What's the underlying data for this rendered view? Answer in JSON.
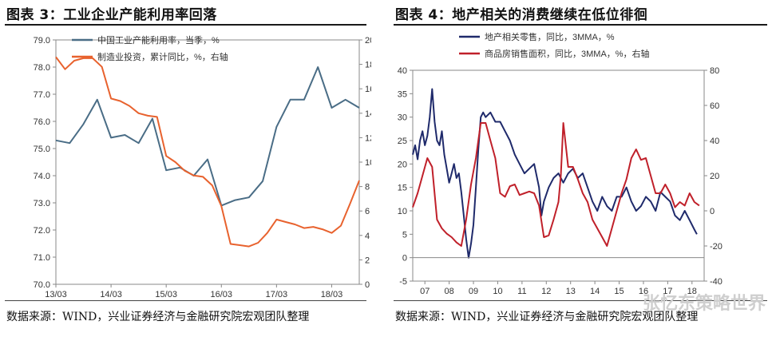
{
  "left": {
    "title": "图表 3：工业企业产能利用率回落",
    "source": "数据来源：WIND，兴业证券经济与金融研究院宏观团队整理",
    "chart_data": {
      "type": "line",
      "title": "工业企业产能利用率回落",
      "x_labels": [
        "13/03",
        "14/03",
        "15/03",
        "16/03",
        "17/03",
        "18/03"
      ],
      "ylim_left": [
        70.0,
        79.0
      ],
      "yticks_left": [
        "79.0",
        "78.0",
        "77.0",
        "76.0",
        "75.0",
        "74.0",
        "73.0",
        "72.0",
        "71.0",
        "70.0"
      ],
      "ylim_right": [
        0,
        20
      ],
      "yticks_right": [
        "20",
        "18",
        "16",
        "14",
        "12",
        "10",
        "8",
        "6",
        "4",
        "2",
        "0"
      ],
      "series": [
        {
          "name": "中国工业产能利用率，当季，%",
          "axis": "left",
          "color": "#4a6d86",
          "x": [
            0,
            3,
            6,
            9,
            12,
            15,
            18,
            21,
            24,
            27,
            30,
            33,
            36,
            39,
            42,
            45,
            48,
            51,
            54,
            57,
            60,
            63,
            66
          ],
          "values": [
            75.3,
            75.2,
            75.9,
            76.8,
            75.4,
            75.5,
            75.2,
            76.1,
            74.2,
            74.3,
            74.0,
            74.6,
            72.9,
            73.1,
            73.2,
            73.8,
            75.8,
            76.8,
            76.8,
            78.0,
            76.5,
            76.8,
            76.5
          ]
        },
        {
          "name": "制造业投资，累计同比，%，右轴",
          "axis": "right",
          "color": "#e8622e",
          "x": [
            0,
            2,
            4,
            6,
            8,
            10,
            12,
            14,
            16,
            18,
            20,
            22,
            24,
            26,
            28,
            30,
            32,
            34,
            36,
            38,
            40,
            42,
            44,
            46,
            48,
            50,
            52,
            54,
            56,
            58,
            60,
            62,
            64,
            66
          ],
          "values": [
            18.6,
            17.6,
            18.3,
            18.5,
            18.5,
            17.8,
            15.2,
            15.0,
            14.6,
            14.0,
            13.8,
            13.7,
            10.5,
            10.0,
            9.3,
            8.9,
            8.8,
            8.1,
            6.4,
            3.3,
            3.2,
            3.1,
            3.4,
            4.2,
            5.3,
            5.1,
            4.9,
            4.6,
            4.7,
            4.5,
            4.2,
            4.8,
            6.6,
            8.5
          ]
        }
      ]
    }
  },
  "right": {
    "title": "图表 4：地产相关的消费继续在低位徘徊",
    "source": "数据来源：WIND，兴业证券经济与金融研究院宏观团队整理",
    "watermark": "张忆东策略世界",
    "chart_data": {
      "type": "line",
      "title": "地产相关的消费继续在低位徘徊",
      "x_labels": [
        "07",
        "08",
        "09",
        "10",
        "11",
        "12",
        "13",
        "14",
        "15",
        "16",
        "17",
        "18"
      ],
      "ylim_left": [
        -5,
        40
      ],
      "yticks_left": [
        "40",
        "35",
        "30",
        "25",
        "20",
        "15",
        "10",
        "5",
        "0",
        "-5"
      ],
      "ylim_right": [
        -40,
        80
      ],
      "yticks_right": [
        "80",
        "60",
        "40",
        "20",
        "0",
        "-20",
        "-40"
      ],
      "series": [
        {
          "name": "地产相关零售，同比，3MMA，%",
          "axis": "left",
          "color": "#1f2a6b",
          "x": [
            0.0,
            0.1,
            0.2,
            0.3,
            0.4,
            0.5,
            0.6,
            0.7,
            0.8,
            0.9,
            1.0,
            1.1,
            1.2,
            1.3,
            1.4,
            1.5,
            1.6,
            1.7,
            1.8,
            1.9,
            2.0,
            2.1,
            2.2,
            2.3,
            2.4,
            2.5,
            2.6,
            2.7,
            2.8,
            2.9,
            3.0,
            3.2,
            3.4,
            3.6,
            3.8,
            4.0,
            4.2,
            4.4,
            4.6,
            4.8,
            5.0,
            5.2,
            5.3,
            5.4,
            5.6,
            5.8,
            6.0,
            6.2,
            6.4,
            6.6,
            6.8,
            7.0,
            7.2,
            7.4,
            7.6,
            7.8,
            8.0,
            8.2,
            8.4,
            8.6,
            8.8,
            9.0,
            9.2,
            9.4,
            9.6,
            9.8,
            10.0,
            10.2,
            10.4,
            10.6,
            10.8,
            11.0,
            11.2,
            11.4,
            11.6,
            11.7
          ],
          "values": [
            22,
            24,
            21,
            25,
            27,
            24,
            26,
            30,
            36,
            29,
            25,
            24,
            27,
            22,
            19,
            16,
            18,
            20,
            17,
            18,
            14,
            9,
            4,
            0,
            3,
            7,
            15,
            23,
            30,
            31,
            30,
            31,
            29,
            29,
            27,
            25,
            22,
            20,
            18,
            19,
            20,
            15,
            9,
            12,
            15,
            17,
            18,
            16,
            18,
            19,
            17,
            18,
            15,
            12,
            10,
            13,
            11,
            10,
            13,
            13,
            15,
            12,
            10,
            11,
            13,
            12,
            10,
            14,
            13,
            12,
            9,
            8,
            10,
            8,
            6,
            5
          ]
        },
        {
          "name": "商品房销售面积，同比，3MMA，%，右轴",
          "axis": "right",
          "color": "#c0202a",
          "x": [
            0.0,
            0.2,
            0.4,
            0.6,
            0.8,
            1.0,
            1.2,
            1.4,
            1.6,
            1.8,
            2.0,
            2.2,
            2.4,
            2.6,
            2.8,
            3.0,
            3.2,
            3.4,
            3.6,
            3.8,
            4.0,
            4.2,
            4.4,
            4.6,
            4.8,
            5.0,
            5.2,
            5.4,
            5.6,
            5.8,
            6.0,
            6.1,
            6.2,
            6.4,
            6.6,
            6.8,
            7.0,
            7.2,
            7.4,
            7.6,
            7.8,
            8.0,
            8.2,
            8.4,
            8.6,
            8.8,
            9.0,
            9.2,
            9.4,
            9.6,
            9.8,
            10.0,
            10.2,
            10.4,
            10.6,
            10.8,
            11.0,
            11.2,
            11.4,
            11.6,
            11.8
          ],
          "values": [
            2,
            10,
            20,
            30,
            25,
            -5,
            -10,
            -13,
            -15,
            -18,
            -20,
            -5,
            15,
            30,
            50,
            50,
            40,
            30,
            10,
            8,
            14,
            15,
            9,
            10,
            11,
            10,
            3,
            -15,
            -14,
            -5,
            5,
            20,
            50,
            25,
            25,
            18,
            10,
            5,
            -5,
            -10,
            -15,
            -20,
            -10,
            0,
            10,
            18,
            30,
            35,
            29,
            30,
            20,
            10,
            10,
            15,
            10,
            2,
            5,
            3,
            10,
            5,
            3
          ]
        }
      ]
    }
  }
}
